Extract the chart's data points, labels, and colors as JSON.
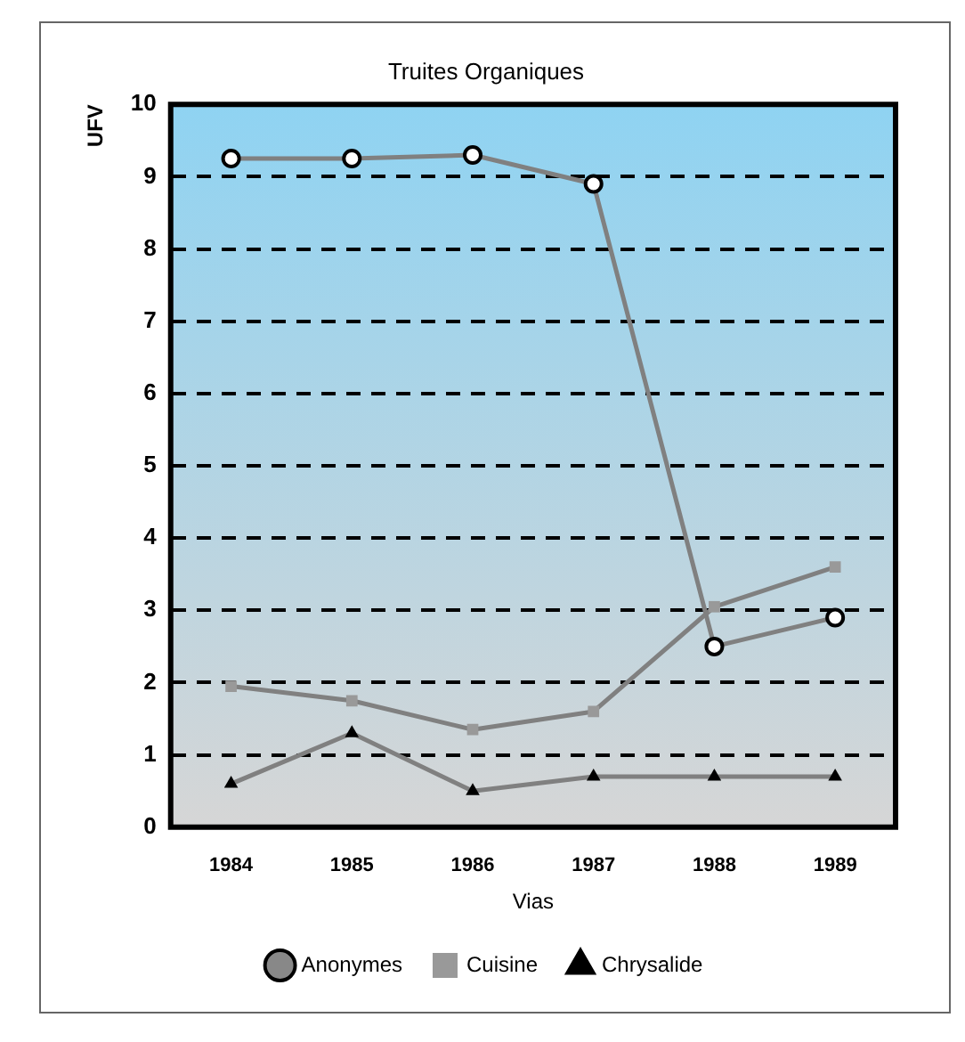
{
  "chart_data": {
    "type": "line",
    "title": "Truites Organiques",
    "ylabel": "UFV",
    "xlabel": "Vias",
    "categories": [
      "1984",
      "1985",
      "1986",
      "1987",
      "1988",
      "1989"
    ],
    "series": [
      {
        "name": "Anonymes",
        "color": "#000000",
        "marker": "circle",
        "values": [
          9.25,
          9.25,
          9.3,
          8.9,
          2.5,
          2.9
        ]
      },
      {
        "name": "Cuisine",
        "color": "#999999",
        "marker": "square",
        "values": [
          1.95,
          1.75,
          1.35,
          1.6,
          3.05,
          3.6
        ]
      },
      {
        "name": "Chrysalide",
        "color": "#000000",
        "marker": "triangle",
        "values": [
          0.6,
          1.3,
          0.5,
          0.7,
          0.7,
          0.7
        ]
      }
    ],
    "ylim": [
      0,
      10
    ],
    "yticks": [
      0,
      1,
      2,
      3,
      4,
      5,
      6,
      7,
      8,
      9,
      10
    ],
    "grid": "y",
    "legend": "bottom",
    "line_style": "solid"
  }
}
